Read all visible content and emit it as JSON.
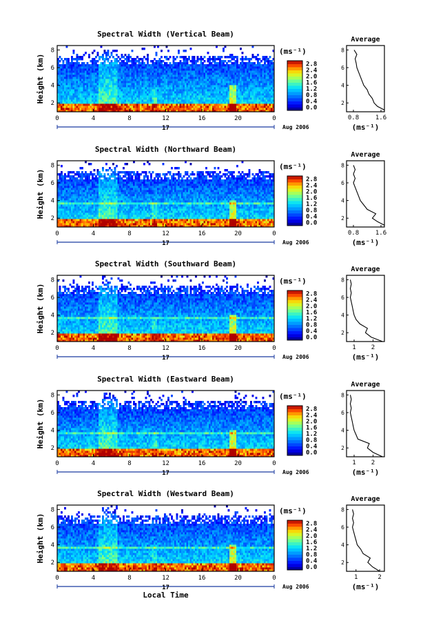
{
  "chart_data": [
    {
      "type": "heatmap",
      "title": "Spectral Width (Vertical Beam)",
      "ylabel": "Height (km)",
      "xlabel": "",
      "x_ticks": [
        "0",
        "4",
        "8",
        "12",
        "16",
        "20",
        "0"
      ],
      "y_ticks": [
        "2",
        "4",
        "6",
        "8"
      ],
      "date_marker": "17",
      "date_label": "Aug 2006",
      "colorbar": {
        "unit": "(ms⁻¹)",
        "ticks": [
          "0.0",
          "0.4",
          "0.8",
          "1.2",
          "1.6",
          "2.0",
          "2.4",
          "2.8"
        ]
      },
      "profile": {
        "title": "Average",
        "xlabel": "(ms⁻¹)",
        "x_ticks": [
          "0.8",
          "1.6"
        ],
        "y_ticks": [
          "2",
          "4",
          "6",
          "8"
        ],
        "xlim": [
          0.6,
          1.7
        ],
        "height": [
          1.2,
          1.6,
          2.0,
          2.5,
          3.0,
          3.5,
          4.0,
          4.5,
          5.0,
          5.5,
          6.0,
          6.5,
          7.0,
          7.5,
          8.0
        ],
        "value": [
          1.7,
          1.5,
          1.4,
          1.35,
          1.25,
          1.2,
          1.1,
          1.05,
          1.0,
          0.95,
          0.9,
          0.88,
          0.85,
          0.9,
          0.82
        ]
      }
    },
    {
      "type": "heatmap",
      "title": "Spectral Width (Northward Beam)",
      "ylabel": "Height (km)",
      "xlabel": "",
      "x_ticks": [
        "0",
        "4",
        "8",
        "12",
        "16",
        "20",
        "0"
      ],
      "y_ticks": [
        "2",
        "4",
        "6",
        "8"
      ],
      "date_marker": "17",
      "date_label": "Aug 2006",
      "colorbar": {
        "unit": "(ms⁻¹)",
        "ticks": [
          "0.0",
          "0.4",
          "0.8",
          "1.2",
          "1.6",
          "2.0",
          "2.4",
          "2.8"
        ]
      },
      "profile": {
        "title": "Average",
        "xlabel": "(ms⁻¹)",
        "x_ticks": [
          "0.8",
          "1.6"
        ],
        "y_ticks": [
          "2",
          "4",
          "6",
          "8"
        ],
        "xlim": [
          0.6,
          1.7
        ],
        "height": [
          1.2,
          1.6,
          2.0,
          2.5,
          3.0,
          3.5,
          4.0,
          4.5,
          5.0,
          5.5,
          6.0,
          6.5,
          7.0,
          7.5,
          8.0
        ],
        "value": [
          1.7,
          1.5,
          1.35,
          1.45,
          1.2,
          1.1,
          1.0,
          0.95,
          0.9,
          0.85,
          0.8,
          0.85,
          0.8,
          0.85,
          0.8
        ]
      }
    },
    {
      "type": "heatmap",
      "title": "Spectral Width (Southward Beam)",
      "ylabel": "Height (km)",
      "xlabel": "",
      "x_ticks": [
        "0",
        "4",
        "8",
        "12",
        "16",
        "20",
        "0"
      ],
      "y_ticks": [
        "2",
        "4",
        "6",
        "8"
      ],
      "date_marker": "17",
      "date_label": "Aug 2006",
      "colorbar": {
        "unit": "(ms⁻¹)",
        "ticks": [
          "0.0",
          "0.4",
          "0.8",
          "1.2",
          "1.6",
          "2.0",
          "2.4",
          "2.8"
        ]
      },
      "profile": {
        "title": "Average",
        "xlabel": "(ms⁻¹)",
        "x_ticks": [
          "1",
          "2"
        ],
        "y_ticks": [
          "2",
          "4",
          "6",
          "8"
        ],
        "xlim": [
          0.6,
          2.6
        ],
        "height": [
          1.0,
          1.5,
          2.0,
          2.5,
          3.0,
          3.5,
          4.0,
          4.5,
          5.0,
          5.5,
          6.0,
          6.5,
          7.0,
          7.5,
          8.0
        ],
        "value": [
          2.5,
          1.9,
          1.6,
          1.7,
          1.3,
          1.1,
          1.0,
          0.95,
          0.9,
          0.85,
          0.8,
          0.85,
          0.8,
          0.85,
          0.8
        ]
      }
    },
    {
      "type": "heatmap",
      "title": "Spectral Width (Eastward Beam)",
      "ylabel": "Height (km)",
      "xlabel": "",
      "x_ticks": [
        "0",
        "4",
        "8",
        "12",
        "16",
        "20",
        "0"
      ],
      "y_ticks": [
        "2",
        "4",
        "6",
        "8"
      ],
      "date_marker": "17",
      "date_label": "Aug 2006",
      "colorbar": {
        "unit": "(ms⁻¹)",
        "ticks": [
          "0.0",
          "0.4",
          "0.8",
          "1.2",
          "1.6",
          "2.0",
          "2.4",
          "2.8"
        ]
      },
      "profile": {
        "title": "Average",
        "xlabel": "(ms⁻¹)",
        "x_ticks": [
          "1",
          "2"
        ],
        "y_ticks": [
          "2",
          "4",
          "6",
          "8"
        ],
        "xlim": [
          0.6,
          2.6
        ],
        "height": [
          1.0,
          1.5,
          2.0,
          2.5,
          3.0,
          3.5,
          4.0,
          4.5,
          5.0,
          5.5,
          6.0,
          6.5,
          7.0,
          7.5,
          8.0
        ],
        "value": [
          2.5,
          2.0,
          1.7,
          1.8,
          1.2,
          1.1,
          1.0,
          0.95,
          0.9,
          0.85,
          0.8,
          0.85,
          0.8,
          0.85,
          0.8
        ]
      }
    },
    {
      "type": "heatmap",
      "title": "Spectral Width (Westward Beam)",
      "ylabel": "Height (km)",
      "xlabel": "Local Time",
      "x_ticks": [
        "0",
        "4",
        "8",
        "12",
        "16",
        "20",
        "0"
      ],
      "y_ticks": [
        "2",
        "4",
        "6",
        "8"
      ],
      "date_marker": "17",
      "date_label": "Aug 2006",
      "colorbar": {
        "unit": "(ms⁻¹)",
        "ticks": [
          "0.0",
          "0.4",
          "0.8",
          "1.2",
          "1.6",
          "2.0",
          "2.4",
          "2.8"
        ]
      },
      "profile": {
        "title": "Average",
        "xlabel": "(ms⁻¹)",
        "x_ticks": [
          "1",
          "2"
        ],
        "y_ticks": [
          "2",
          "4",
          "6",
          "8"
        ],
        "xlim": [
          0.6,
          2.2
        ],
        "height": [
          1.0,
          1.5,
          2.0,
          2.5,
          3.0,
          3.5,
          4.0,
          4.5,
          5.0,
          5.5,
          6.0,
          6.5,
          7.0,
          7.5,
          8.0
        ],
        "value": [
          2.0,
          1.7,
          1.5,
          1.6,
          1.3,
          1.2,
          1.05,
          1.0,
          0.95,
          0.9,
          0.85,
          0.9,
          0.85,
          0.9,
          0.85
        ]
      }
    }
  ]
}
